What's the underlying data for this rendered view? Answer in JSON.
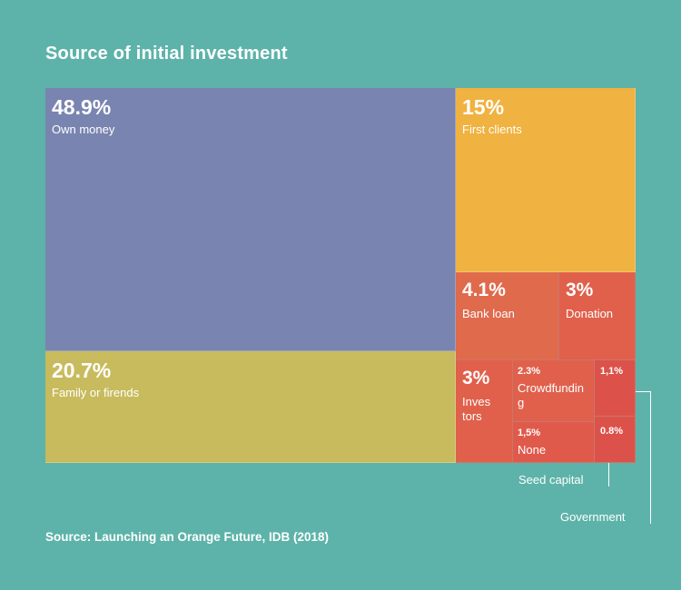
{
  "title": "Source of initial investment",
  "source": "Source: Launching an Orange Future, IDB (2018)",
  "chart_data": {
    "type": "treemap",
    "title": "Source of initial investment",
    "unit": "%",
    "items": [
      {
        "key": "own",
        "value_label": "48.9%",
        "value": 48.9,
        "label": "Own money",
        "color": "#7a84b0"
      },
      {
        "key": "family",
        "value_label": "20.7%",
        "value": 20.7,
        "label": "Family or firends",
        "color": "#c8bb5d"
      },
      {
        "key": "clients",
        "value_label": "15%",
        "value": 15,
        "label": "First clients",
        "color": "#f0b240"
      },
      {
        "key": "bank",
        "value_label": "4.1%",
        "value": 4.1,
        "label": "Bank loan",
        "color": "#e06a4c"
      },
      {
        "key": "donation",
        "value_label": "3%",
        "value": 3,
        "label": "Donation",
        "color": "#e0604c"
      },
      {
        "key": "investors",
        "value_label": "3%",
        "value": 3,
        "label": "Inves tors",
        "color": "#e0604c"
      },
      {
        "key": "crowd",
        "value_label": "2.3%",
        "value": 2.3,
        "label": "Crowdfunding",
        "color": "#e0604c"
      },
      {
        "key": "none",
        "value_label": "1,5%",
        "value": 1.5,
        "label": "None",
        "color": "#e05a4c"
      },
      {
        "key": "gov",
        "value_label": "1,1%",
        "value": 1.1,
        "label": "Government",
        "color": "#dc524a"
      },
      {
        "key": "seed",
        "value_label": "0.8%",
        "value": 0.8,
        "label": "Seed capital",
        "color": "#dc524a"
      }
    ]
  }
}
